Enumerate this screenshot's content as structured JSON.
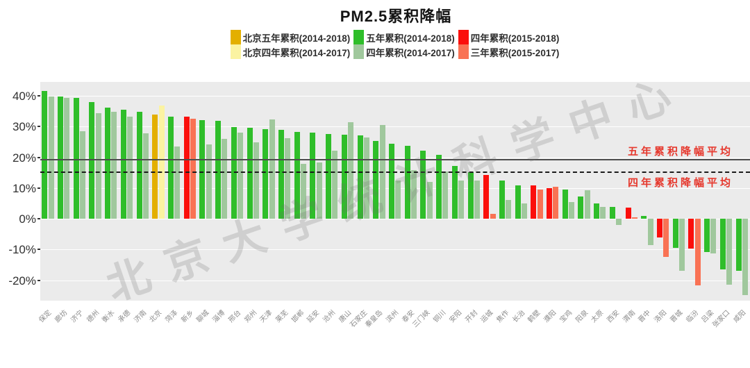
{
  "title": "PM2.5累积降幅",
  "watermark": "北京大学统计科学中心",
  "palette": {
    "gold": "#E3AF00",
    "pale_yellow": "#FBF3A2",
    "green": "#2FBE2A",
    "sage": "#A0C89D",
    "red": "#FB0F0C",
    "salmon": "#F97254",
    "plot_bg": "#EBEBEB",
    "grid": "#FFFFFF",
    "avg5_line": "#4D4D4D",
    "avg4_line": "#1A1A1A",
    "annotation": "#E6392E",
    "axis_text": "#303030",
    "xlabel_text": "#8C8C8C"
  },
  "legend": {
    "rows": [
      [
        {
          "label": "北京五年累积(2014-2018)",
          "color": "gold"
        },
        {
          "label": "五年累积(2014-2018)",
          "color": "green"
        },
        {
          "label": "四年累积(2015-2018)",
          "color": "red"
        }
      ],
      [
        {
          "label": "北京四年累积(2014-2017)",
          "color": "pale_yellow"
        },
        {
          "label": "四年累积(2014-2017)",
          "color": "sage"
        },
        {
          "label": "三年累积(2015-2017)",
          "color": "salmon"
        }
      ]
    ]
  },
  "chart_data": {
    "type": "bar",
    "title": "PM2.5累积降幅",
    "xlabel": "",
    "ylabel": "",
    "ylim": [
      -26.7,
      44.5
    ],
    "grid": true,
    "legend_position": "top",
    "y_ticks": [
      {
        "value": 40,
        "label": "40%"
      },
      {
        "value": 30,
        "label": "30%"
      },
      {
        "value": 20,
        "label": "20%"
      },
      {
        "value": 10,
        "label": "10%"
      },
      {
        "value": 0,
        "label": "0%"
      },
      {
        "value": -10,
        "label": "-10%"
      },
      {
        "value": -20,
        "label": "-20%"
      }
    ],
    "reference_lines": [
      {
        "value": 19.5,
        "style": "solid",
        "label": "五年累积降幅平均"
      },
      {
        "value": 15.3,
        "style": "dashed",
        "label": "四年累积降幅平均"
      }
    ],
    "group_series": {
      "standard": {
        "primary": "五年累积(2014-2018)",
        "secondary": "四年累积(2014-2017)",
        "primary_color": "green",
        "secondary_color": "sage"
      },
      "beijing": {
        "primary": "北京五年累积(2014-2018)",
        "secondary": "北京四年累积(2014-2017)",
        "primary_color": "gold",
        "secondary_color": "pale_yellow"
      },
      "late": {
        "primary": "四年累积(2015-2018)",
        "secondary": "三年累积(2015-2017)",
        "primary_color": "red",
        "secondary_color": "salmon"
      }
    },
    "value_unit": "%",
    "cities": [
      {
        "name": "保定",
        "group": "standard",
        "primary": 41.5,
        "secondary": 39.8
      },
      {
        "name": "廊坊",
        "group": "standard",
        "primary": 39.8,
        "secondary": 39.3
      },
      {
        "name": "济宁",
        "group": "standard",
        "primary": 39.4,
        "secondary": 28.4
      },
      {
        "name": "德州",
        "group": "standard",
        "primary": 38.0,
        "secondary": 34.4
      },
      {
        "name": "衡水",
        "group": "standard",
        "primary": 36.2,
        "secondary": 34.9
      },
      {
        "name": "承德",
        "group": "standard",
        "primary": 35.4,
        "secondary": 33.3
      },
      {
        "name": "济南",
        "group": "standard",
        "primary": 34.9,
        "secondary": 27.9
      },
      {
        "name": "北京",
        "group": "beijing",
        "primary": 33.9,
        "secondary": 36.9
      },
      {
        "name": "菏泽",
        "group": "standard",
        "primary": 33.3,
        "secondary": 23.5
      },
      {
        "name": "新乡",
        "group": "late",
        "primary": 33.3,
        "secondary": 32.6
      },
      {
        "name": "聊城",
        "group": "standard",
        "primary": 32.2,
        "secondary": 24.1
      },
      {
        "name": "淄博",
        "group": "standard",
        "primary": 31.8,
        "secondary": 26.0
      },
      {
        "name": "邢台",
        "group": "standard",
        "primary": 29.8,
        "secondary": 28.0
      },
      {
        "name": "郑州",
        "group": "standard",
        "primary": 29.6,
        "secondary": 24.9
      },
      {
        "name": "天津",
        "group": "standard",
        "primary": 29.2,
        "secondary": 32.4
      },
      {
        "name": "莱芜",
        "group": "standard",
        "primary": 29.0,
        "secondary": 26.2
      },
      {
        "name": "邯郸",
        "group": "standard",
        "primary": 28.2,
        "secondary": 17.8
      },
      {
        "name": "延安",
        "group": "standard",
        "primary": 28.0,
        "secondary": 18.3
      },
      {
        "name": "沧州",
        "group": "standard",
        "primary": 27.5,
        "secondary": 22.2
      },
      {
        "name": "唐山",
        "group": "standard",
        "primary": 27.3,
        "secondary": 31.4
      },
      {
        "name": "石家庄",
        "group": "standard",
        "primary": 27.1,
        "secondary": 26.4
      },
      {
        "name": "秦皇岛",
        "group": "standard",
        "primary": 25.3,
        "secondary": 30.5
      },
      {
        "name": "滨州",
        "group": "standard",
        "primary": 24.5,
        "secondary": 12.4
      },
      {
        "name": "泰安",
        "group": "standard",
        "primary": 23.7,
        "secondary": 15.8
      },
      {
        "name": "三门峡",
        "group": "standard",
        "primary": 22.2,
        "secondary": 12.0
      },
      {
        "name": "铜川",
        "group": "standard",
        "primary": 20.9,
        "secondary": 15.3
      },
      {
        "name": "安阳",
        "group": "standard",
        "primary": 17.1,
        "secondary": 12.4
      },
      {
        "name": "开封",
        "group": "standard",
        "primary": 15.1,
        "secondary": 12.4
      },
      {
        "name": "运城",
        "group": "late",
        "primary": 14.3,
        "secondary": 1.5
      },
      {
        "name": "焦作",
        "group": "standard",
        "primary": 12.4,
        "secondary": 6.0
      },
      {
        "name": "长治",
        "group": "standard",
        "primary": 10.9,
        "secondary": 4.9
      },
      {
        "name": "鹤壁",
        "group": "late",
        "primary": 10.9,
        "secondary": 9.6
      },
      {
        "name": "濮阳",
        "group": "late",
        "primary": 10.0,
        "secondary": 10.5
      },
      {
        "name": "宝鸡",
        "group": "standard",
        "primary": 9.6,
        "secondary": 5.5
      },
      {
        "name": "阳泉",
        "group": "standard",
        "primary": 7.3,
        "secondary": 9.3
      },
      {
        "name": "太原",
        "group": "standard",
        "primary": 5.0,
        "secondary": 3.8
      },
      {
        "name": "西安",
        "group": "standard",
        "primary": 3.8,
        "secondary": -2.0
      },
      {
        "name": "渭南",
        "group": "late",
        "primary": 3.6,
        "secondary": 0.5
      },
      {
        "name": "晋中",
        "group": "standard",
        "primary": 1.0,
        "secondary": -8.5
      },
      {
        "name": "洛阳",
        "group": "late",
        "primary": -6.0,
        "secondary": -12.4
      },
      {
        "name": "晋城",
        "group": "standard",
        "primary": -9.4,
        "secondary": -16.9
      },
      {
        "name": "临汾",
        "group": "late",
        "primary": -9.8,
        "secondary": -21.8
      },
      {
        "name": "吕梁",
        "group": "standard",
        "primary": -10.9,
        "secondary": -11.3
      },
      {
        "name": "张家口",
        "group": "standard",
        "primary": -16.6,
        "secondary": -21.5
      },
      {
        "name": "咸阳",
        "group": "standard",
        "primary": -17.0,
        "secondary": -24.8
      }
    ]
  }
}
